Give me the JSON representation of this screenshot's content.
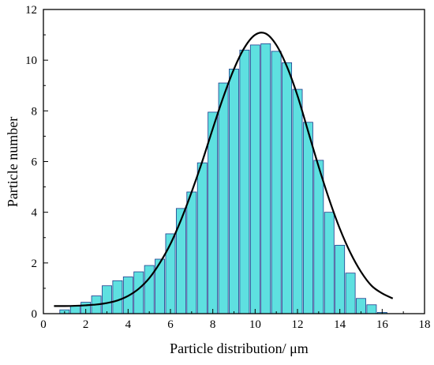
{
  "chart_data": {
    "type": "bar",
    "title": "",
    "xlabel": "Particle distribution/ μm",
    "ylabel": "Particle number",
    "xlim": [
      0,
      18
    ],
    "ylim": [
      0,
      12
    ],
    "xticks": [
      "0",
      "2",
      "4",
      "6",
      "8",
      "10",
      "12",
      "14",
      "16",
      "18"
    ],
    "yticks": [
      "0",
      "2",
      "4",
      "6",
      "8",
      "10",
      "12"
    ],
    "grid": false,
    "bin_width": 0.45,
    "bars": {
      "x": [
        1.0,
        1.5,
        2.0,
        2.5,
        3.0,
        3.5,
        4.0,
        4.5,
        5.0,
        5.5,
        6.0,
        6.5,
        7.0,
        7.5,
        8.0,
        8.5,
        9.0,
        9.5,
        10.0,
        10.5,
        11.0,
        11.5,
        12.0,
        12.5,
        13.0,
        13.5,
        14.0,
        14.5,
        15.0,
        15.5,
        16.0
      ],
      "y": [
        0.15,
        0.3,
        0.45,
        0.7,
        1.1,
        1.3,
        1.45,
        1.65,
        1.9,
        2.15,
        3.15,
        4.15,
        4.8,
        5.95,
        7.95,
        9.1,
        9.65,
        10.4,
        10.6,
        10.65,
        10.35,
        9.9,
        8.85,
        7.55,
        6.05,
        4.0,
        2.7,
        1.6,
        0.6,
        0.35,
        0.05
      ],
      "fill": "#5EE0E0",
      "edge": "#1E3C8C"
    },
    "fit_curve": {
      "x": [
        0.5,
        1,
        1.5,
        2,
        2.5,
        3,
        3.5,
        4,
        4.5,
        5,
        5.5,
        6,
        6.5,
        7,
        7.5,
        8,
        8.5,
        9,
        9.5,
        10,
        10.5,
        11,
        11.5,
        12,
        12.5,
        13,
        13.5,
        14,
        14.5,
        15,
        15.5,
        16,
        16.5
      ],
      "y": [
        0.3,
        0.3,
        0.31,
        0.33,
        0.36,
        0.42,
        0.52,
        0.7,
        0.98,
        1.4,
        2.0,
        2.75,
        3.7,
        4.8,
        6.0,
        7.3,
        8.55,
        9.65,
        10.5,
        11.0,
        11.05,
        10.6,
        9.75,
        8.6,
        7.2,
        5.8,
        4.5,
        3.35,
        2.4,
        1.65,
        1.1,
        0.8,
        0.6
      ],
      "color": "#000000"
    }
  }
}
